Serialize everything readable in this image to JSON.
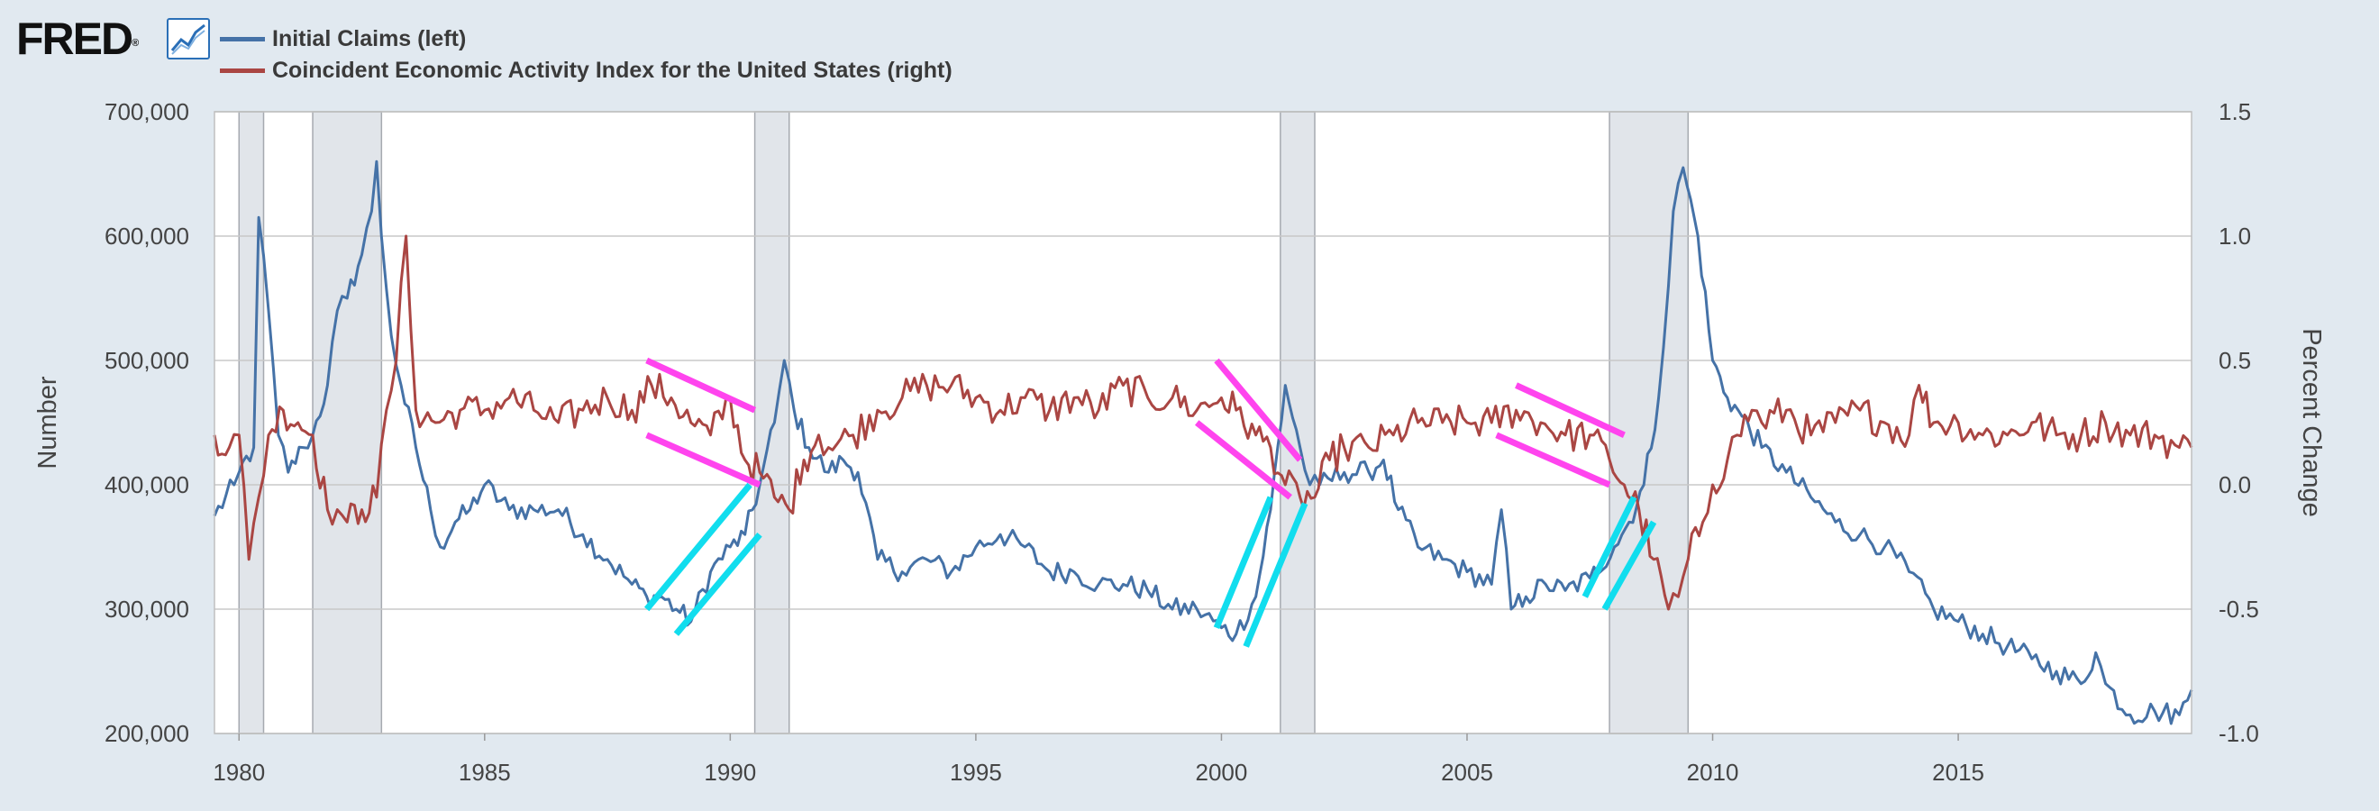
{
  "header": {
    "logo_text": "FRED",
    "logo_mark": "®"
  },
  "chart_data": {
    "type": "line",
    "x_range": [
      1979.5,
      2019.75
    ],
    "xticks": [
      1980,
      1985,
      1990,
      1995,
      2000,
      2005,
      2010,
      2015
    ],
    "xtick_labels": [
      "1980",
      "1985",
      "1990",
      "1995",
      "2000",
      "2005",
      "2010",
      "2015"
    ],
    "y_left": {
      "label": "Number",
      "range": [
        200000,
        700000
      ],
      "ticks": [
        200000,
        300000,
        400000,
        500000,
        600000,
        700000
      ],
      "tick_labels": [
        "200,000",
        "300,000",
        "400,000",
        "500,000",
        "600,000",
        "700,000"
      ]
    },
    "y_right": {
      "label": "Percent Change",
      "range": [
        -1.0,
        1.5
      ],
      "ticks": [
        -1.0,
        -0.5,
        0.0,
        0.5,
        1.0,
        1.5
      ],
      "tick_labels": [
        "-1.0",
        "-0.5",
        "0.0",
        "0.5",
        "1.0",
        "1.5"
      ]
    },
    "recessions": [
      [
        1980.0,
        1980.5
      ],
      [
        1981.5,
        1982.9
      ],
      [
        1990.5,
        1991.2
      ],
      [
        2001.2,
        2001.9
      ],
      [
        2007.9,
        2009.5
      ]
    ],
    "series": [
      {
        "name": "Initial Claims (left)",
        "axis": "left",
        "color": "#4572a7",
        "x": [
          1979.5,
          1979.9,
          1980.0,
          1980.3,
          1980.4,
          1980.6,
          1980.8,
          1981.0,
          1981.3,
          1981.5,
          1981.8,
          1982.0,
          1982.2,
          1982.5,
          1982.7,
          1982.8,
          1982.9,
          1983.1,
          1983.3,
          1983.6,
          1983.9,
          1984.1,
          1984.4,
          1984.7,
          1985.0,
          1985.5,
          1986.0,
          1986.5,
          1987.0,
          1987.5,
          1988.0,
          1988.3,
          1988.6,
          1988.9,
          1989.2,
          1989.6,
          1990.0,
          1990.3,
          1990.6,
          1990.9,
          1991.1,
          1991.3,
          1991.6,
          1992.0,
          1992.3,
          1992.6,
          1993.0,
          1993.5,
          1994.0,
          1994.5,
          1995.0,
          1995.5,
          1996.0,
          1996.5,
          1997.0,
          1997.5,
          1998.0,
          1998.5,
          1999.0,
          1999.5,
          2000.0,
          2000.3,
          2000.7,
          2001.0,
          2001.3,
          2001.6,
          2001.8,
          2002.0,
          2002.5,
          2003.0,
          2003.3,
          2003.6,
          2004.0,
          2004.5,
          2005.0,
          2005.5,
          2005.7,
          2005.9,
          2006.2,
          2006.6,
          2007.0,
          2007.5,
          2008.0,
          2008.3,
          2008.6,
          2008.9,
          2009.1,
          2009.2,
          2009.4,
          2009.7,
          2010.0,
          2010.3,
          2010.6,
          2011.0,
          2011.5,
          2012.0,
          2012.5,
          2013.0,
          2013.5,
          2014.0,
          2014.5,
          2015.0,
          2015.5,
          2016.0,
          2016.5,
          2017.0,
          2017.5,
          2017.8,
          2018.0,
          2018.5,
          2019.0,
          2019.5,
          2019.75
        ],
        "values": [
          375000,
          400000,
          410000,
          430000,
          615000,
          540000,
          440000,
          410000,
          430000,
          440000,
          480000,
          540000,
          550000,
          585000,
          620000,
          660000,
          600000,
          520000,
          480000,
          430000,
          380000,
          350000,
          370000,
          380000,
          400000,
          380000,
          380000,
          380000,
          360000,
          340000,
          320000,
          310000,
          310000,
          300000,
          290000,
          330000,
          350000,
          360000,
          400000,
          450000,
          500000,
          460000,
          430000,
          410000,
          420000,
          410000,
          340000,
          330000,
          340000,
          330000,
          350000,
          360000,
          350000,
          330000,
          330000,
          320000,
          320000,
          315000,
          300000,
          300000,
          285000,
          280000,
          310000,
          380000,
          480000,
          430000,
          400000,
          400000,
          410000,
          410000,
          420000,
          380000,
          350000,
          340000,
          330000,
          320000,
          380000,
          300000,
          310000,
          320000,
          315000,
          325000,
          350000,
          370000,
          400000,
          470000,
          560000,
          620000,
          655000,
          600000,
          500000,
          470000,
          455000,
          430000,
          410000,
          390000,
          370000,
          360000,
          350000,
          330000,
          300000,
          290000,
          280000,
          270000,
          260000,
          250000,
          240000,
          265000,
          240000,
          215000,
          218000,
          215000,
          235000
        ]
      },
      {
        "name": "Coincident Economic Activity Index for the United States (right)",
        "axis": "right",
        "color": "#aa4643",
        "x": [
          1979.5,
          1979.8,
          1980.0,
          1980.2,
          1980.4,
          1980.6,
          1980.9,
          1981.2,
          1981.5,
          1981.8,
          1982.0,
          1982.2,
          1982.5,
          1982.8,
          1983.0,
          1983.2,
          1983.4,
          1983.6,
          1984.0,
          1984.5,
          1985.0,
          1985.5,
          1986.0,
          1986.5,
          1987.0,
          1987.5,
          1988.0,
          1988.4,
          1988.8,
          1989.2,
          1989.6,
          1990.0,
          1990.3,
          1990.6,
          1990.9,
          1991.2,
          1991.5,
          1991.8,
          1992.0,
          1992.5,
          1993.0,
          1993.5,
          1994.0,
          1994.5,
          1995.0,
          1995.5,
          1996.0,
          1996.5,
          1997.0,
          1997.5,
          1998.0,
          1998.5,
          1999.0,
          1999.5,
          2000.0,
          2000.3,
          2000.7,
          2001.0,
          2001.3,
          2001.6,
          2001.9,
          2002.2,
          2002.5,
          2003.0,
          2003.5,
          2004.0,
          2004.5,
          2005.0,
          2005.5,
          2006.0,
          2006.5,
          2007.0,
          2007.5,
          2007.9,
          2008.2,
          2008.5,
          2008.8,
          2009.1,
          2009.3,
          2009.5,
          2009.8,
          2010.0,
          2010.3,
          2010.5,
          2010.8,
          2011.0,
          2011.5,
          2012.0,
          2012.5,
          2013.0,
          2013.5,
          2014.0,
          2014.2,
          2014.5,
          2015.0,
          2015.5,
          2016.0,
          2016.5,
          2017.0,
          2017.5,
          2018.0,
          2018.5,
          2019.0,
          2019.5,
          2019.75
        ],
        "values": [
          0.2,
          0.15,
          0.2,
          -0.3,
          -0.05,
          0.2,
          0.3,
          0.25,
          0.2,
          -0.1,
          -0.1,
          -0.15,
          -0.1,
          -0.05,
          0.3,
          0.5,
          1.0,
          0.3,
          0.25,
          0.3,
          0.3,
          0.35,
          0.3,
          0.25,
          0.3,
          0.35,
          0.3,
          0.4,
          0.35,
          0.25,
          0.2,
          0.35,
          0.1,
          0.05,
          -0.05,
          -0.1,
          0.1,
          0.2,
          0.15,
          0.2,
          0.3,
          0.35,
          0.4,
          0.4,
          0.35,
          0.3,
          0.35,
          0.3,
          0.35,
          0.3,
          0.4,
          0.35,
          0.35,
          0.3,
          0.35,
          0.3,
          0.2,
          0.15,
          0.0,
          -0.05,
          -0.05,
          0.1,
          0.15,
          0.15,
          0.2,
          0.25,
          0.25,
          0.25,
          0.25,
          0.3,
          0.25,
          0.2,
          0.2,
          0.1,
          0.0,
          -0.1,
          -0.3,
          -0.5,
          -0.45,
          -0.3,
          -0.15,
          0.0,
          0.1,
          0.2,
          0.3,
          0.25,
          0.3,
          0.2,
          0.25,
          0.3,
          0.25,
          0.2,
          0.4,
          0.25,
          0.25,
          0.2,
          0.2,
          0.25,
          0.2,
          0.2,
          0.25,
          0.2,
          0.2,
          0.15,
          0.15
        ]
      }
    ],
    "annotations": [
      {
        "color": "#ff44ee",
        "x1": 1988.3,
        "y1": 0.5,
        "x2": 1990.5,
        "y2": 0.3
      },
      {
        "color": "#ff44ee",
        "x1": 1988.3,
        "y1": 0.2,
        "x2": 1990.6,
        "y2": 0.0
      },
      {
        "color": "#11ddee",
        "x1": 1988.3,
        "y1": 300000,
        "x2": 1990.4,
        "y2": 400000
      },
      {
        "color": "#11ddee",
        "x1": 1988.9,
        "y1": 280000,
        "x2": 1990.6,
        "y2": 360000
      },
      {
        "color": "#ff44ee",
        "x1": 1999.9,
        "y1": 0.5,
        "x2": 2001.6,
        "y2": 0.1
      },
      {
        "color": "#ff44ee",
        "x1": 1999.5,
        "y1": 0.25,
        "x2": 2001.4,
        "y2": -0.05
      },
      {
        "color": "#11ddee",
        "x1": 1999.9,
        "y1": 285000,
        "x2": 2001.0,
        "y2": 390000
      },
      {
        "color": "#11ddee",
        "x1": 2000.5,
        "y1": 270000,
        "x2": 2001.7,
        "y2": 385000
      },
      {
        "color": "#ff44ee",
        "x1": 2006.0,
        "y1": 0.4,
        "x2": 2008.2,
        "y2": 0.2
      },
      {
        "color": "#ff44ee",
        "x1": 2005.6,
        "y1": 0.2,
        "x2": 2007.9,
        "y2": 0.0
      },
      {
        "color": "#11ddee",
        "x1": 2007.4,
        "y1": 310000,
        "x2": 2008.4,
        "y2": 390000
      },
      {
        "color": "#11ddee",
        "x1": 2007.8,
        "y1": 300000,
        "x2": 2008.8,
        "y2": 370000
      }
    ]
  }
}
